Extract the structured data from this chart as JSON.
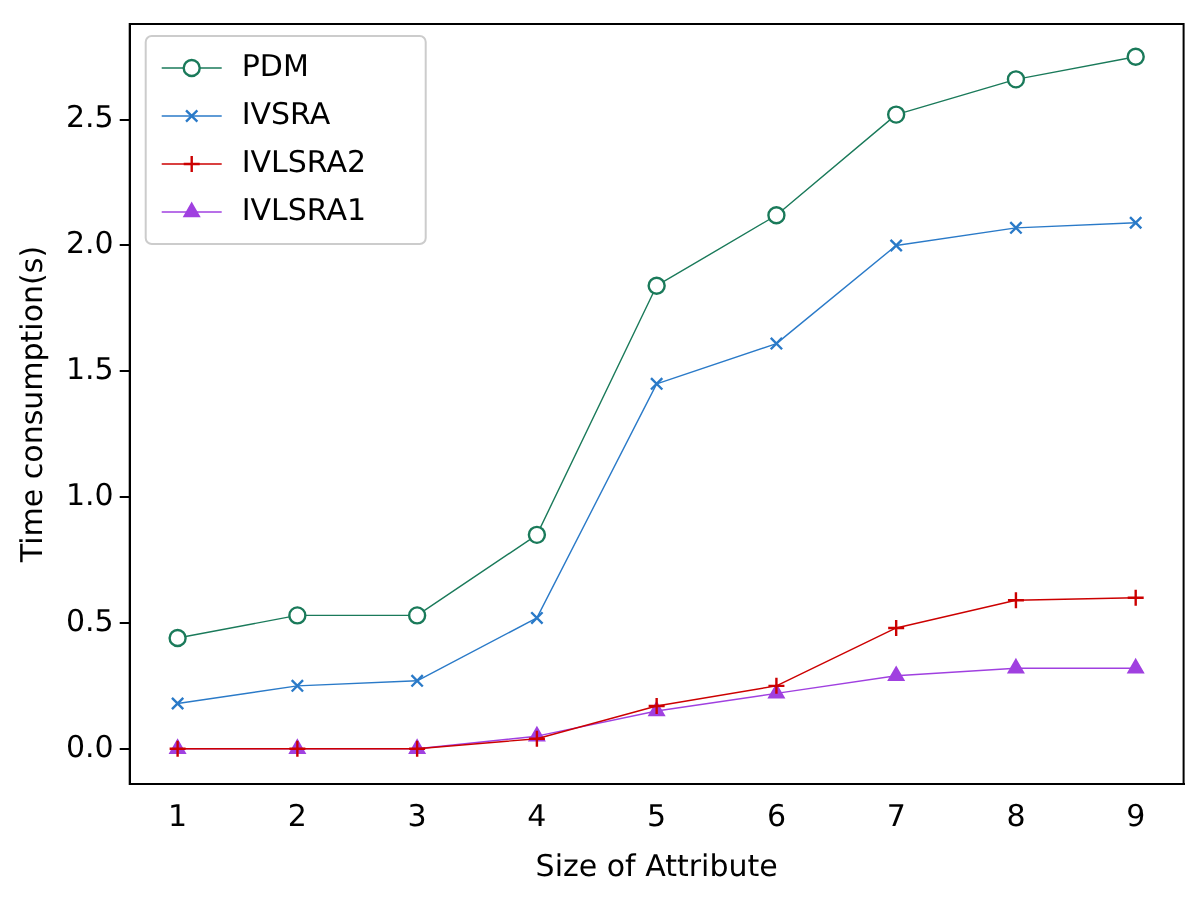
{
  "chart_data": {
    "type": "line",
    "xlabel": "Size of Attribute",
    "ylabel": "Time consumption(s)",
    "x": [
      1,
      2,
      3,
      4,
      5,
      6,
      7,
      8,
      9
    ],
    "series": [
      {
        "name": "PDM",
        "color": "#1a7a5a",
        "marker": "circle",
        "values": [
          0.44,
          0.53,
          0.53,
          0.85,
          1.84,
          2.12,
          2.52,
          2.66,
          2.75
        ]
      },
      {
        "name": "IVSRA",
        "color": "#2a7ac8",
        "marker": "x",
        "values": [
          0.18,
          0.25,
          0.27,
          0.52,
          1.45,
          1.61,
          2.0,
          2.07,
          2.09
        ]
      },
      {
        "name": "IVLSRA2",
        "color": "#cc0000",
        "marker": "cross",
        "values": [
          0,
          0,
          0,
          0.04,
          0.17,
          0.25,
          0.48,
          0.59,
          0.6
        ]
      },
      {
        "name": "IVLSRA1",
        "color": "#a040e0",
        "marker": "triangle",
        "values": [
          0,
          0,
          0,
          0.05,
          0.15,
          0.22,
          0.29,
          0.32,
          0.32
        ]
      }
    ],
    "xlim": [
      0.6,
      9.4
    ],
    "xticks": [
      1,
      2,
      3,
      4,
      5,
      6,
      7,
      8,
      9
    ],
    "ylim": [
      -0.14,
      2.88
    ],
    "yticks": [
      {
        "value": 0,
        "label": "0.0"
      },
      {
        "value": 0.5,
        "label": "0.5"
      },
      {
        "value": 1,
        "label": "1.0"
      },
      {
        "value": 1.5,
        "label": "1.5"
      },
      {
        "value": 2,
        "label": "2.0"
      },
      {
        "value": 2.5,
        "label": "2.5"
      }
    ],
    "legend": "top left",
    "grid": false,
    "line_style": "solid"
  }
}
